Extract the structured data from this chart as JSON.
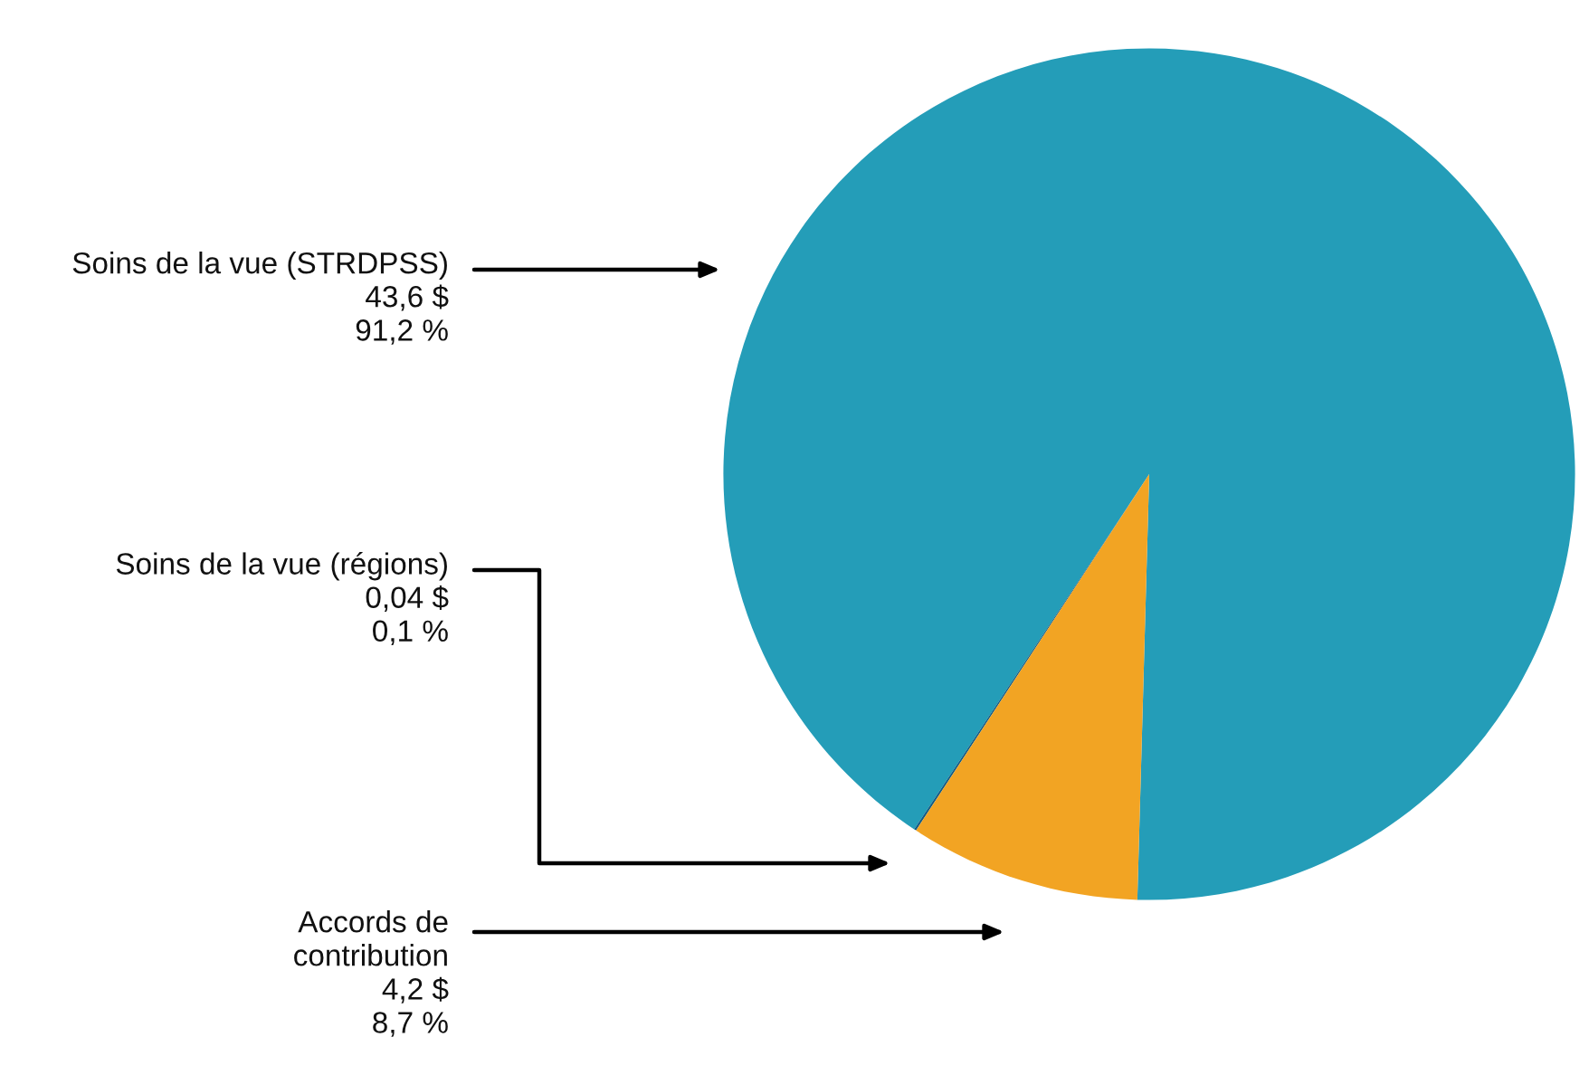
{
  "chart_data": {
    "type": "pie",
    "categories": [
      "Soins de la vue (STRDPSS)",
      "Soins de la vue (régions)",
      "Accords de\ncontribution"
    ],
    "values": [
      43.6,
      0.04,
      4.2
    ],
    "value_labels": [
      "43,6 $\n91,2 %",
      "0,04 $\n0,1 %",
      "4,2 $\n8,7 %"
    ],
    "colors": [
      "#249db8",
      "#125d86",
      "#f2a423"
    ]
  }
}
